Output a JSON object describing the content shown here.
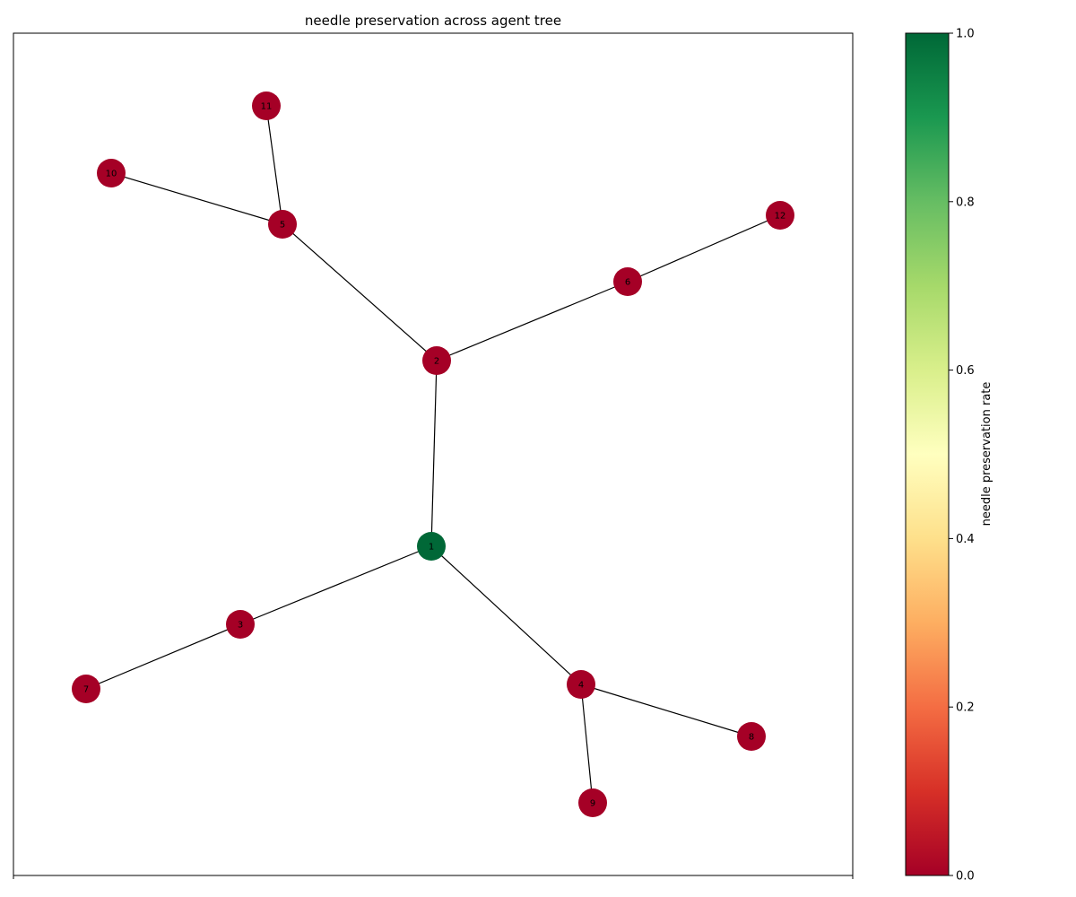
{
  "title": "needle preservation across agent tree",
  "colorbar": {
    "label": "needle preservation rate",
    "ticks": [
      "0.0",
      "0.2",
      "0.4",
      "0.6",
      "0.8",
      "1.0"
    ],
    "range": [
      0,
      1
    ],
    "colormap": [
      "#a50026",
      "#d73027",
      "#f46d43",
      "#fdae61",
      "#fee08b",
      "#ffffbf",
      "#d9ef8b",
      "#a6d96a",
      "#66bd63",
      "#1a9850",
      "#006837"
    ]
  },
  "nodes": [
    {
      "id": "1",
      "rate": 1.0
    },
    {
      "id": "2",
      "rate": 0.0
    },
    {
      "id": "3",
      "rate": 0.0
    },
    {
      "id": "4",
      "rate": 0.0
    },
    {
      "id": "5",
      "rate": 0.0
    },
    {
      "id": "6",
      "rate": 0.0
    },
    {
      "id": "7",
      "rate": 0.0
    },
    {
      "id": "8",
      "rate": 0.0
    },
    {
      "id": "9",
      "rate": 0.0
    },
    {
      "id": "10",
      "rate": 0.0
    },
    {
      "id": "11",
      "rate": 0.0
    },
    {
      "id": "12",
      "rate": 0.0
    }
  ],
  "edges": [
    [
      "1",
      "2"
    ],
    [
      "1",
      "3"
    ],
    [
      "1",
      "4"
    ],
    [
      "2",
      "5"
    ],
    [
      "2",
      "6"
    ],
    [
      "3",
      "7"
    ],
    [
      "4",
      "8"
    ],
    [
      "4",
      "9"
    ],
    [
      "5",
      "10"
    ],
    [
      "5",
      "11"
    ],
    [
      "6",
      "12"
    ]
  ]
}
